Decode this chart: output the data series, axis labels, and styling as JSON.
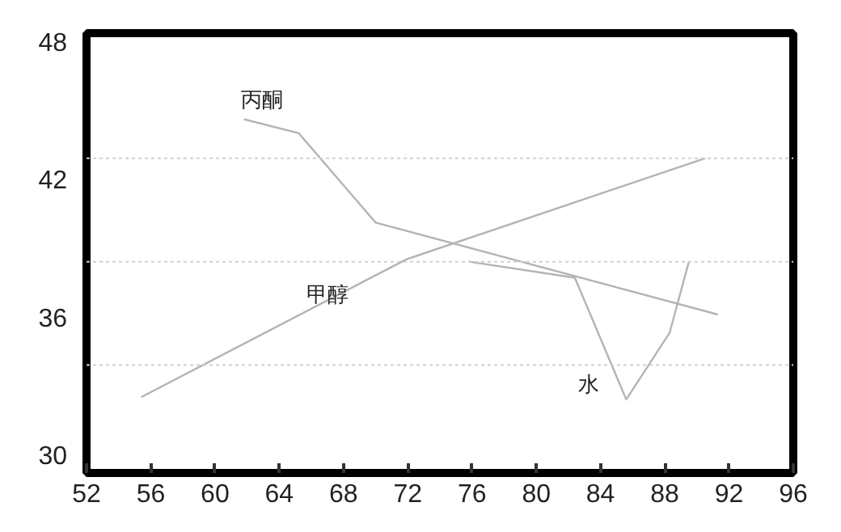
{
  "chart_data": {
    "type": "line",
    "xlim": [
      52,
      96
    ],
    "ylim": [
      29.2,
      48.35
    ],
    "xticks": [
      52,
      56,
      60,
      64,
      68,
      72,
      76,
      80,
      84,
      88,
      92,
      96
    ],
    "yticks": [
      30,
      36,
      42,
      48
    ],
    "grid": false,
    "line_style": "solid",
    "marker": "none",
    "ref_lines": [
      {
        "axis": "y",
        "value": 42.9,
        "color": "#d0d0d0",
        "line_style": "dotted"
      },
      {
        "axis": "y",
        "value": 38.4,
        "color": "#d0d0d0",
        "line_style": "dotted"
      },
      {
        "axis": "y",
        "value": 33.9,
        "color": "#d0d0d0",
        "line_style": "dotted"
      }
    ],
    "series": [
      {
        "name": "丙酮",
        "color": "#b4b4b4",
        "x": [
          61.8,
          65.2,
          70.0,
          91.3
        ],
        "values": [
          44.6,
          44.0,
          40.1,
          36.1
        ]
      },
      {
        "name": "甲醇",
        "color": "#b4b4b4",
        "x": [
          55.4,
          71.9,
          90.5
        ],
        "values": [
          32.5,
          38.5,
          42.9
        ]
      },
      {
        "name": "水",
        "color": "#b4b4b4",
        "x": [
          75.8,
          82.4,
          85.6,
          88.3,
          89.5
        ],
        "values": [
          38.4,
          37.7,
          32.4,
          35.3,
          38.4
        ]
      }
    ]
  }
}
